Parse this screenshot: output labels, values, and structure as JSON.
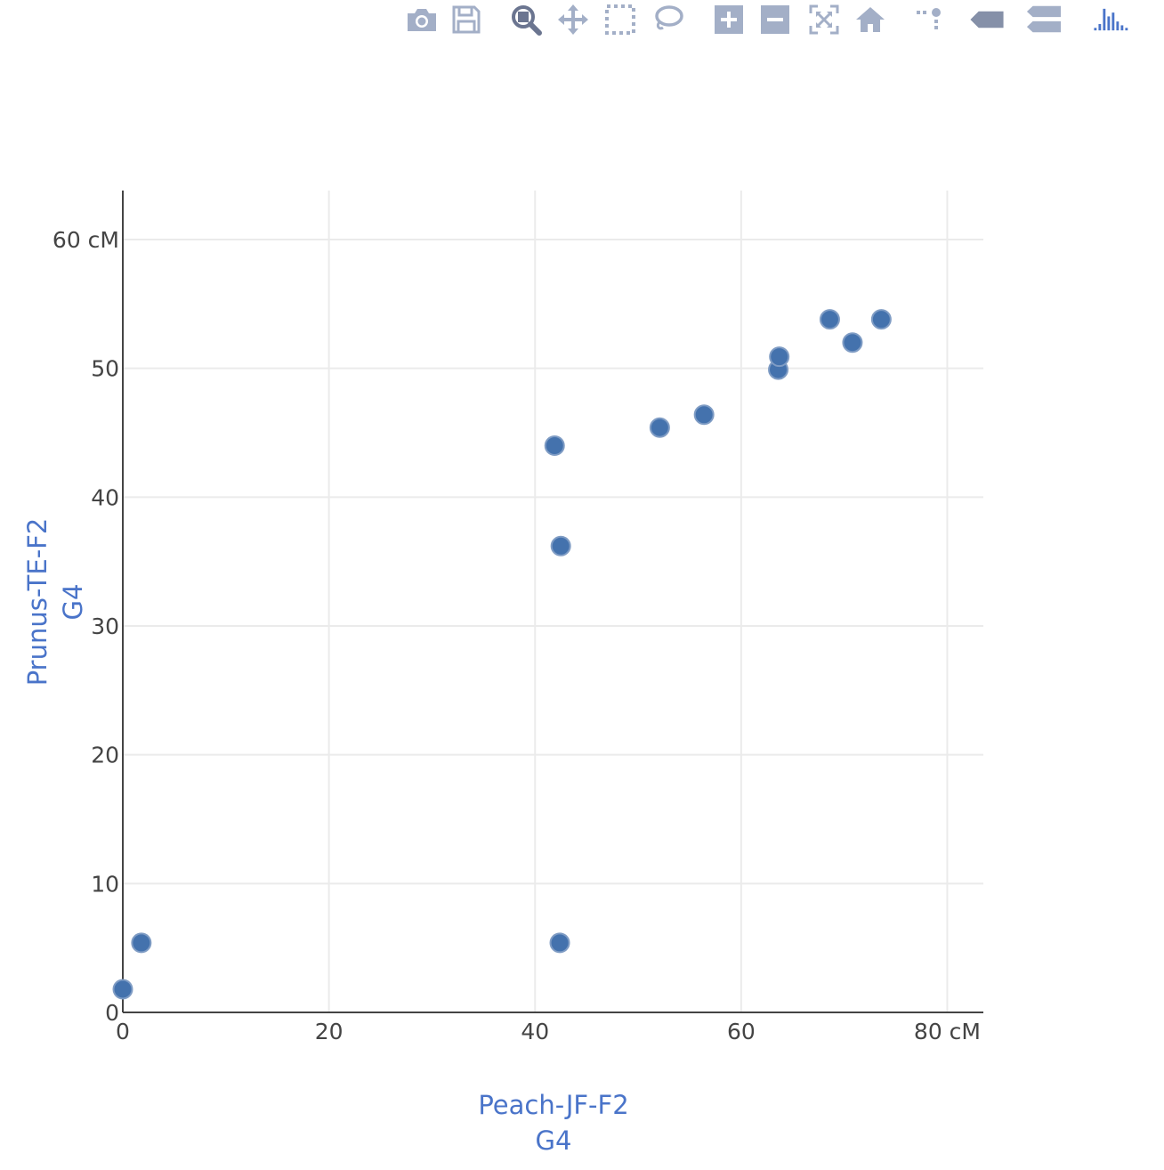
{
  "toolbar": {
    "buttons": [
      {
        "name": "camera-icon",
        "color": "#a3afc7"
      },
      {
        "name": "save-icon",
        "color": "#a3afc7"
      },
      {
        "name": "zoom-icon",
        "color": "#6b7590",
        "active": true
      },
      {
        "name": "pan-icon",
        "color": "#a3afc7"
      },
      {
        "name": "box-select-icon",
        "color": "#a3afc7"
      },
      {
        "name": "lasso-select-icon",
        "color": "#a3afc7"
      },
      {
        "name": "zoom-in-icon",
        "color": "#a3afc7"
      },
      {
        "name": "zoom-out-icon",
        "color": "#a3afc7"
      },
      {
        "name": "autoscale-icon",
        "color": "#a3afc7"
      },
      {
        "name": "reset-axes-icon",
        "color": "#a3afc7"
      },
      {
        "name": "spike-lines-icon",
        "color": "#a3afc7"
      },
      {
        "name": "hover-closest-icon",
        "color": "#8590a8"
      },
      {
        "name": "hover-compare-icon",
        "color": "#a3afc7"
      },
      {
        "name": "plotly-logo-icon",
        "color": "#4a74c9"
      }
    ]
  },
  "chart_data": {
    "type": "scatter",
    "xlabel": [
      "Peach-JF-F2",
      "G4"
    ],
    "ylabel": [
      "Prunus-TE-F2",
      "G4"
    ],
    "xlim": [
      0,
      83.5
    ],
    "ylim": [
      0,
      63.8
    ],
    "xticks": [
      {
        "value": 0,
        "label": "0"
      },
      {
        "value": 20,
        "label": "20"
      },
      {
        "value": 40,
        "label": "40"
      },
      {
        "value": 60,
        "label": "60"
      },
      {
        "value": 80,
        "label": "80 cM"
      }
    ],
    "yticks": [
      {
        "value": 0,
        "label": "0"
      },
      {
        "value": 10,
        "label": "10"
      },
      {
        "value": 20,
        "label": "20"
      },
      {
        "value": 30,
        "label": "30"
      },
      {
        "value": 40,
        "label": "40"
      },
      {
        "value": 50,
        "label": "50"
      },
      {
        "value": 60,
        "label": "60 cM"
      }
    ],
    "grid": true,
    "marker_color": "#4472ad",
    "marker_line_color": "#7f9cc4",
    "points": [
      {
        "x": 0.0,
        "y": 1.8
      },
      {
        "x": 1.8,
        "y": 5.4
      },
      {
        "x": 42.4,
        "y": 5.4
      },
      {
        "x": 42.5,
        "y": 36.2
      },
      {
        "x": 41.9,
        "y": 44.0
      },
      {
        "x": 52.1,
        "y": 45.4
      },
      {
        "x": 56.4,
        "y": 46.4
      },
      {
        "x": 63.6,
        "y": 49.9
      },
      {
        "x": 63.7,
        "y": 50.9
      },
      {
        "x": 68.6,
        "y": 53.8
      },
      {
        "x": 70.8,
        "y": 52.0
      },
      {
        "x": 73.6,
        "y": 53.8
      }
    ]
  }
}
